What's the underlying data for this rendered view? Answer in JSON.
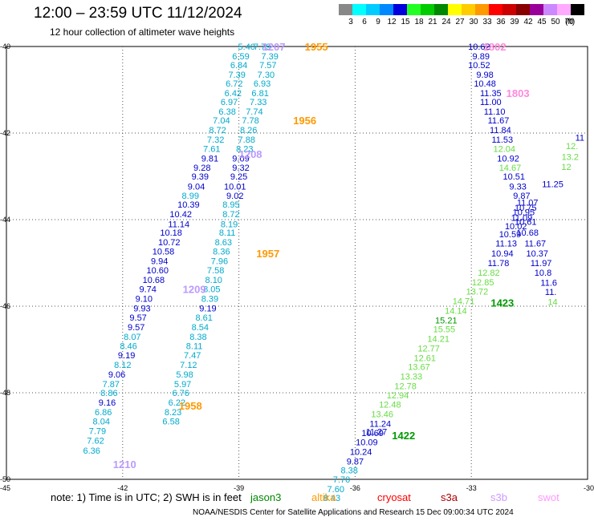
{
  "header": {
    "title": "12:00 – 23:59 UTC 11/12/2024",
    "subtitle": "12 hour collection of altimeter wave heights",
    "scale_unit": "(ft)"
  },
  "color_scale": [
    {
      "label": "",
      "color": "#888888"
    },
    {
      "label": "3",
      "color": "#00ffff"
    },
    {
      "label": "6",
      "color": "#00ccff"
    },
    {
      "label": "9",
      "color": "#0088ff"
    },
    {
      "label": "12",
      "color": "#0000dd"
    },
    {
      "label": "15",
      "color": "#22ff22"
    },
    {
      "label": "18",
      "color": "#00cc00"
    },
    {
      "label": "21",
      "color": "#008800"
    },
    {
      "label": "24",
      "color": "#ffff00"
    },
    {
      "label": "27",
      "color": "#ffcc00"
    },
    {
      "label": "30",
      "color": "#ff9900"
    },
    {
      "label": "33",
      "color": "#ff0000"
    },
    {
      "label": "36",
      "color": "#cc0000"
    },
    {
      "label": "39",
      "color": "#880000"
    },
    {
      "label": "42",
      "color": "#990099"
    },
    {
      "label": "45",
      "color": "#cc88ff"
    },
    {
      "label": "50",
      "color": "#ffaaff"
    },
    {
      "label": "70",
      "color": "#000000"
    }
  ],
  "footer": {
    "note": "note:  1) Time is in UTC;  2) SWH is in feet",
    "satellites": [
      {
        "name": "jason3",
        "color": "#008800"
      },
      {
        "name": "altika",
        "color": "#ff9900"
      },
      {
        "name": "cryosat",
        "color": "#ff0000"
      },
      {
        "name": "s3a",
        "color": "#aa0000"
      },
      {
        "name": "s3b",
        "color": "#cc99ff"
      },
      {
        "name": "swot",
        "color": "#ff99ff"
      }
    ],
    "credit": "NOAA/NESDIS Center for Satellite Applications and Research     15 Dec 09:00:34 UTC 2024"
  },
  "chart_data": {
    "type": "scatter",
    "title": "12:00 – 23:59 UTC 11/12/2024",
    "subtitle": "12 hour collection of altimeter wave heights",
    "xlim": [
      -45,
      -30
    ],
    "ylim": [
      -50,
      -40
    ],
    "x_ticks": [
      "-45",
      "-42",
      "-39",
      "-36",
      "-33",
      "-30"
    ],
    "y_ticks": [
      "-40",
      "-42",
      "-44",
      "-46",
      "-48",
      "-50"
    ],
    "grid": true,
    "palette": {
      "light": "#00aacc",
      "dark": "#0000cc",
      "lgreen": "#66dd44",
      "green": "#009900",
      "orange": "#ff9900",
      "lilac": "#bb99ff",
      "pink": "#ff88dd"
    },
    "points": [
      {
        "lon": -38.8,
        "lat": -40.0,
        "v": "5.40",
        "c": "light"
      },
      {
        "lon": -38.95,
        "lat": -40.22,
        "v": "6.59",
        "c": "light"
      },
      {
        "lon": -39.0,
        "lat": -40.43,
        "v": "6.84",
        "c": "light"
      },
      {
        "lon": -39.05,
        "lat": -40.65,
        "v": "7.39",
        "c": "light"
      },
      {
        "lon": -39.12,
        "lat": -40.85,
        "v": "6.72",
        "c": "light"
      },
      {
        "lon": -39.15,
        "lat": -41.07,
        "v": "6.42",
        "c": "light"
      },
      {
        "lon": -39.25,
        "lat": -41.28,
        "v": "6.97",
        "c": "light"
      },
      {
        "lon": -39.3,
        "lat": -41.5,
        "v": "6.38",
        "c": "light"
      },
      {
        "lon": -39.45,
        "lat": -41.7,
        "v": "7.04",
        "c": "light"
      },
      {
        "lon": -39.55,
        "lat": -41.93,
        "v": "8.72",
        "c": "light"
      },
      {
        "lon": -39.6,
        "lat": -42.15,
        "v": "7.32",
        "c": "light"
      },
      {
        "lon": -39.7,
        "lat": -42.36,
        "v": "7.61",
        "c": "light"
      },
      {
        "lon": -39.75,
        "lat": -42.58,
        "v": "9.81",
        "c": "dark"
      },
      {
        "lon": -39.95,
        "lat": -42.8,
        "v": "9.28",
        "c": "dark"
      },
      {
        "lon": -40.0,
        "lat": -43.0,
        "v": "9.39",
        "c": "dark"
      },
      {
        "lon": -40.1,
        "lat": -43.23,
        "v": "9.04",
        "c": "dark"
      },
      {
        "lon": -40.25,
        "lat": -43.44,
        "v": "8.99",
        "c": "light"
      },
      {
        "lon": -40.3,
        "lat": -43.65,
        "v": "10.39",
        "c": "dark"
      },
      {
        "lon": -40.5,
        "lat": -43.87,
        "v": "10.42",
        "c": "dark"
      },
      {
        "lon": -40.55,
        "lat": -44.1,
        "v": "11.14",
        "c": "dark"
      },
      {
        "lon": -40.75,
        "lat": -44.3,
        "v": "10.18",
        "c": "dark"
      },
      {
        "lon": -40.8,
        "lat": -44.52,
        "v": "10.72",
        "c": "dark"
      },
      {
        "lon": -40.95,
        "lat": -44.73,
        "v": "10.58",
        "c": "dark"
      },
      {
        "lon": -41.05,
        "lat": -44.95,
        "v": "9.94",
        "c": "dark"
      },
      {
        "lon": -41.1,
        "lat": -45.17,
        "v": "10.60",
        "c": "dark"
      },
      {
        "lon": -41.2,
        "lat": -45.39,
        "v": "10.68",
        "c": "dark"
      },
      {
        "lon": -41.35,
        "lat": -45.6,
        "v": "9.74",
        "c": "dark"
      },
      {
        "lon": -41.45,
        "lat": -45.82,
        "v": "9.10",
        "c": "dark"
      },
      {
        "lon": -41.5,
        "lat": -46.05,
        "v": "9.93",
        "c": "dark"
      },
      {
        "lon": -41.6,
        "lat": -46.26,
        "v": "9.57",
        "c": "dark"
      },
      {
        "lon": -41.65,
        "lat": -46.48,
        "v": "9.57",
        "c": "dark"
      },
      {
        "lon": -41.75,
        "lat": -46.7,
        "v": "8.07",
        "c": "light"
      },
      {
        "lon": -41.85,
        "lat": -46.92,
        "v": "8.46",
        "c": "light"
      },
      {
        "lon": -41.9,
        "lat": -47.13,
        "v": "9.19",
        "c": "dark"
      },
      {
        "lon": -42.0,
        "lat": -47.35,
        "v": "8.12",
        "c": "light"
      },
      {
        "lon": -42.15,
        "lat": -47.57,
        "v": "9.06",
        "c": "dark"
      },
      {
        "lon": -42.3,
        "lat": -47.8,
        "v": "7.87",
        "c": "light"
      },
      {
        "lon": -42.35,
        "lat": -48.0,
        "v": "8.86",
        "c": "light"
      },
      {
        "lon": -42.4,
        "lat": -48.22,
        "v": "9.16",
        "c": "dark"
      },
      {
        "lon": -42.5,
        "lat": -48.44,
        "v": "6.86",
        "c": "light"
      },
      {
        "lon": -42.55,
        "lat": -48.66,
        "v": "8.04",
        "c": "light"
      },
      {
        "lon": -42.65,
        "lat": -48.88,
        "v": "7.79",
        "c": "light"
      },
      {
        "lon": -42.7,
        "lat": -49.1,
        "v": "7.62",
        "c": "light"
      },
      {
        "lon": -42.8,
        "lat": -49.33,
        "v": "6.36",
        "c": "light"
      },
      {
        "lon": -38.4,
        "lat": -40.0,
        "v": "7.79",
        "c": "light"
      },
      {
        "lon": -38.2,
        "lat": -40.22,
        "v": "7.39",
        "c": "light"
      },
      {
        "lon": -38.25,
        "lat": -40.43,
        "v": "7.57",
        "c": "light"
      },
      {
        "lon": -38.3,
        "lat": -40.65,
        "v": "7.30",
        "c": "light"
      },
      {
        "lon": -38.4,
        "lat": -40.85,
        "v": "6.93",
        "c": "light"
      },
      {
        "lon": -38.45,
        "lat": -41.07,
        "v": "6.81",
        "c": "light"
      },
      {
        "lon": -38.5,
        "lat": -41.28,
        "v": "7.33",
        "c": "light"
      },
      {
        "lon": -38.6,
        "lat": -41.5,
        "v": "7.74",
        "c": "light"
      },
      {
        "lon": -38.7,
        "lat": -41.7,
        "v": "7.78",
        "c": "light"
      },
      {
        "lon": -38.75,
        "lat": -41.93,
        "v": "8.26",
        "c": "light"
      },
      {
        "lon": -38.8,
        "lat": -42.15,
        "v": "7.88",
        "c": "light"
      },
      {
        "lon": -38.85,
        "lat": -42.36,
        "v": "8.23",
        "c": "light"
      },
      {
        "lon": -38.95,
        "lat": -42.58,
        "v": "9.09",
        "c": "dark"
      },
      {
        "lon": -38.95,
        "lat": -42.8,
        "v": "9.32",
        "c": "dark"
      },
      {
        "lon": -39.0,
        "lat": -43.0,
        "v": "9.25",
        "c": "dark"
      },
      {
        "lon": -39.1,
        "lat": -43.23,
        "v": "10.01",
        "c": "dark"
      },
      {
        "lon": -39.1,
        "lat": -43.44,
        "v": "9.02",
        "c": "dark"
      },
      {
        "lon": -39.2,
        "lat": -43.65,
        "v": "8.95",
        "c": "light"
      },
      {
        "lon": -39.2,
        "lat": -43.87,
        "v": "8.72",
        "c": "light"
      },
      {
        "lon": -39.25,
        "lat": -44.1,
        "v": "8.19",
        "c": "light"
      },
      {
        "lon": -39.3,
        "lat": -44.3,
        "v": "8.11",
        "c": "light"
      },
      {
        "lon": -39.4,
        "lat": -44.52,
        "v": "8.63",
        "c": "light"
      },
      {
        "lon": -39.45,
        "lat": -44.73,
        "v": "8.36",
        "c": "light"
      },
      {
        "lon": -39.5,
        "lat": -44.95,
        "v": "7.96",
        "c": "light"
      },
      {
        "lon": -39.6,
        "lat": -45.17,
        "v": "7.58",
        "c": "light"
      },
      {
        "lon": -39.65,
        "lat": -45.39,
        "v": "8.10",
        "c": "light"
      },
      {
        "lon": -39.7,
        "lat": -45.6,
        "v": "8.05",
        "c": "light"
      },
      {
        "lon": -39.75,
        "lat": -45.82,
        "v": "8.39",
        "c": "light"
      },
      {
        "lon": -39.8,
        "lat": -46.05,
        "v": "9.19",
        "c": "dark"
      },
      {
        "lon": -39.9,
        "lat": -46.26,
        "v": "8.61",
        "c": "light"
      },
      {
        "lon": -40.0,
        "lat": -46.48,
        "v": "8.54",
        "c": "light"
      },
      {
        "lon": -40.05,
        "lat": -46.7,
        "v": "8.38",
        "c": "light"
      },
      {
        "lon": -40.15,
        "lat": -46.92,
        "v": "8.11",
        "c": "light"
      },
      {
        "lon": -40.2,
        "lat": -47.13,
        "v": "7.47",
        "c": "light"
      },
      {
        "lon": -40.3,
        "lat": -47.35,
        "v": "7.12",
        "c": "light"
      },
      {
        "lon": -40.4,
        "lat": -47.57,
        "v": "5.98",
        "c": "light"
      },
      {
        "lon": -40.45,
        "lat": -47.8,
        "v": "5.97",
        "c": "light"
      },
      {
        "lon": -40.5,
        "lat": -48.0,
        "v": "6.76",
        "c": "light"
      },
      {
        "lon": -40.6,
        "lat": -48.22,
        "v": "6.22",
        "c": "light"
      },
      {
        "lon": -40.7,
        "lat": -48.44,
        "v": "8.23",
        "c": "light"
      },
      {
        "lon": -40.75,
        "lat": -48.66,
        "v": "6.58",
        "c": "light"
      },
      {
        "lon": -32.8,
        "lat": -40.0,
        "v": "10.62",
        "c": "dark"
      },
      {
        "lon": -32.75,
        "lat": -40.22,
        "v": "9.89",
        "c": "dark"
      },
      {
        "lon": -32.8,
        "lat": -40.43,
        "v": "10.52",
        "c": "dark"
      },
      {
        "lon": -32.65,
        "lat": -40.65,
        "v": "9.98",
        "c": "dark"
      },
      {
        "lon": -32.65,
        "lat": -40.85,
        "v": "10.48",
        "c": "dark"
      },
      {
        "lon": -32.5,
        "lat": -41.07,
        "v": "11.35",
        "c": "dark"
      },
      {
        "lon": -32.5,
        "lat": -41.28,
        "v": "11.00",
        "c": "dark"
      },
      {
        "lon": -32.4,
        "lat": -41.5,
        "v": "11.10",
        "c": "dark"
      },
      {
        "lon": -32.3,
        "lat": -41.7,
        "v": "11.67",
        "c": "dark"
      },
      {
        "lon": -32.25,
        "lat": -41.93,
        "v": "11.84",
        "c": "dark"
      },
      {
        "lon": -32.2,
        "lat": -42.15,
        "v": "11.53",
        "c": "dark"
      },
      {
        "lon": -32.15,
        "lat": -42.36,
        "v": "12.04",
        "c": "lgreen"
      },
      {
        "lon": -32.05,
        "lat": -42.58,
        "v": "10.92",
        "c": "dark"
      },
      {
        "lon": -32.0,
        "lat": -42.8,
        "v": "14.67",
        "c": "lgreen"
      },
      {
        "lon": -31.9,
        "lat": -43.0,
        "v": "10.51",
        "c": "dark"
      },
      {
        "lon": -31.8,
        "lat": -43.23,
        "v": "9.33",
        "c": "dark"
      },
      {
        "lon": -31.7,
        "lat": -43.44,
        "v": "9.87",
        "c": "dark"
      },
      {
        "lon": -31.55,
        "lat": -43.6,
        "v": "11.07",
        "c": "dark"
      },
      {
        "lon": -31.6,
        "lat": -43.72,
        "v": "10.75",
        "c": "dark"
      },
      {
        "lon": -31.65,
        "lat": -43.82,
        "v": "10.95",
        "c": "dark"
      },
      {
        "lon": -31.7,
        "lat": -43.95,
        "v": "11.09",
        "c": "dark"
      },
      {
        "lon": -31.6,
        "lat": -44.05,
        "v": "10.61",
        "c": "dark"
      },
      {
        "lon": -31.85,
        "lat": -44.15,
        "v": "10.02",
        "c": "dark"
      },
      {
        "lon": -31.55,
        "lat": -44.3,
        "v": "10.68",
        "c": "dark"
      },
      {
        "lon": -32.0,
        "lat": -44.33,
        "v": "10.59",
        "c": "dark"
      },
      {
        "lon": -32.1,
        "lat": -44.55,
        "v": "11.13",
        "c": "dark"
      },
      {
        "lon": -31.35,
        "lat": -44.55,
        "v": "11.67",
        "c": "dark"
      },
      {
        "lon": -32.2,
        "lat": -44.78,
        "v": "10.94",
        "c": "dark"
      },
      {
        "lon": -31.3,
        "lat": -44.78,
        "v": "10.37",
        "c": "dark"
      },
      {
        "lon": -32.3,
        "lat": -45.0,
        "v": "11.78",
        "c": "dark"
      },
      {
        "lon": -30.9,
        "lat": -43.18,
        "v": "11.25",
        "c": "dark"
      },
      {
        "lon": -31.2,
        "lat": -45.0,
        "v": "11.97",
        "c": "dark"
      },
      {
        "lon": -31.15,
        "lat": -45.22,
        "v": "10.8",
        "c": "dark"
      },
      {
        "lon": -31.0,
        "lat": -45.45,
        "v": "11.6",
        "c": "dark"
      },
      {
        "lon": -30.95,
        "lat": -45.67,
        "v": "11.",
        "c": "dark"
      },
      {
        "lon": -30.9,
        "lat": -45.9,
        "v": "14",
        "c": "lgreen"
      },
      {
        "lon": -30.2,
        "lat": -42.1,
        "v": "11",
        "c": "dark"
      },
      {
        "lon": -30.4,
        "lat": -42.3,
        "v": "12.",
        "c": "lgreen"
      },
      {
        "lon": -30.45,
        "lat": -42.55,
        "v": "13.2",
        "c": "lgreen"
      },
      {
        "lon": -30.55,
        "lat": -42.78,
        "v": "12",
        "c": "lgreen"
      },
      {
        "lon": -32.55,
        "lat": -45.22,
        "v": "12.82",
        "c": "lgreen"
      },
      {
        "lon": -32.7,
        "lat": -45.44,
        "v": "12.85",
        "c": "lgreen"
      },
      {
        "lon": -32.85,
        "lat": -45.66,
        "v": "13.72",
        "c": "lgreen"
      },
      {
        "lon": -33.2,
        "lat": -45.88,
        "v": "14.71",
        "c": "lgreen"
      },
      {
        "lon": -33.4,
        "lat": -46.1,
        "v": "14.14",
        "c": "lgreen"
      },
      {
        "lon": -33.65,
        "lat": -46.32,
        "v": "15.21",
        "c": "green"
      },
      {
        "lon": -33.7,
        "lat": -46.53,
        "v": "15.55",
        "c": "lgreen"
      },
      {
        "lon": -33.85,
        "lat": -46.75,
        "v": "14.21",
        "c": "lgreen"
      },
      {
        "lon": -34.1,
        "lat": -46.97,
        "v": "12.77",
        "c": "lgreen"
      },
      {
        "lon": -34.2,
        "lat": -47.19,
        "v": "12.61",
        "c": "lgreen"
      },
      {
        "lon": -34.35,
        "lat": -47.4,
        "v": "13.67",
        "c": "lgreen"
      },
      {
        "lon": -34.55,
        "lat": -47.62,
        "v": "13.33",
        "c": "lgreen"
      },
      {
        "lon": -34.7,
        "lat": -47.84,
        "v": "12.78",
        "c": "lgreen"
      },
      {
        "lon": -34.9,
        "lat": -48.06,
        "v": "12.94",
        "c": "lgreen"
      },
      {
        "lon": -35.1,
        "lat": -48.27,
        "v": "12.48",
        "c": "lgreen"
      },
      {
        "lon": -35.3,
        "lat": -48.49,
        "v": "13.46",
        "c": "lgreen"
      },
      {
        "lon": -35.35,
        "lat": -48.71,
        "v": "11.24",
        "c": "dark"
      },
      {
        "lon": -35.55,
        "lat": -48.93,
        "v": "10.69",
        "c": "dark"
      },
      {
        "lon": -35.45,
        "lat": -48.9,
        "v": "11.27",
        "c": "dark"
      },
      {
        "lon": -35.7,
        "lat": -49.14,
        "v": "10.09",
        "c": "dark"
      },
      {
        "lon": -35.85,
        "lat": -49.36,
        "v": "10.24",
        "c": "dark"
      },
      {
        "lon": -36.0,
        "lat": -49.58,
        "v": "9.87",
        "c": "dark"
      },
      {
        "lon": -36.15,
        "lat": -49.79,
        "v": "8.38",
        "c": "light"
      },
      {
        "lon": -36.35,
        "lat": -50.0,
        "v": "7.70",
        "c": "light"
      },
      {
        "lon": -36.5,
        "lat": -50.22,
        "v": "7.60",
        "c": "light"
      },
      {
        "lon": -36.6,
        "lat": -50.43,
        "v": "8.43",
        "c": "light"
      }
    ],
    "pass_labels": [
      {
        "lon": -38.1,
        "lat": -40.0,
        "text": "1207",
        "c": "lilac"
      },
      {
        "lon": -37.0,
        "lat": -40.0,
        "text": "1955",
        "c": "orange"
      },
      {
        "lon": -32.4,
        "lat": -40.0,
        "text": "1802",
        "c": "pink"
      },
      {
        "lon": -37.3,
        "lat": -41.7,
        "text": "1956",
        "c": "orange"
      },
      {
        "lon": -31.8,
        "lat": -41.07,
        "text": "1803",
        "c": "pink"
      },
      {
        "lon": -38.7,
        "lat": -42.48,
        "text": "1208",
        "c": "lilac"
      },
      {
        "lon": -38.25,
        "lat": -44.78,
        "text": "1957",
        "c": "orange"
      },
      {
        "lon": -40.15,
        "lat": -45.6,
        "text": "1209",
        "c": "lilac"
      },
      {
        "lon": -32.2,
        "lat": -45.92,
        "text": "1423",
        "c": "green"
      },
      {
        "lon": -40.25,
        "lat": -48.3,
        "text": "1958",
        "c": "orange"
      },
      {
        "lon": -34.75,
        "lat": -48.98,
        "text": "1422",
        "c": "green"
      },
      {
        "lon": -41.95,
        "lat": -49.65,
        "text": "1210",
        "c": "lilac"
      }
    ]
  }
}
